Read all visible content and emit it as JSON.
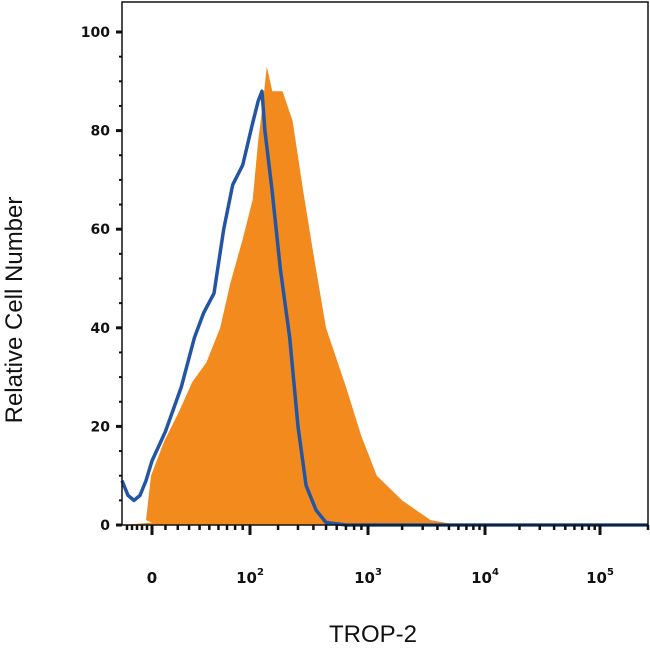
{
  "chart_data": {
    "type": "area",
    "xlabel": "TROP-2",
    "ylabel": "Relative Cell Number",
    "x_scale": "biexponential",
    "ylim": [
      0,
      100
    ],
    "yticks": [
      0,
      20,
      40,
      60,
      80,
      100
    ],
    "ytick_labels": [
      "0",
      "20",
      "40",
      "60",
      "80",
      "100"
    ],
    "xticks": [
      {
        "value": 0,
        "base": "0",
        "exp": ""
      },
      {
        "value": 100,
        "base": "10",
        "exp": "2"
      },
      {
        "value": 1000,
        "base": "10",
        "exp": "3"
      },
      {
        "value": 10000,
        "base": "10",
        "exp": "4"
      },
      {
        "value": 100000,
        "base": "10",
        "exp": "5"
      }
    ],
    "grid": false,
    "legend": "none",
    "colors": {
      "filled": "#F28A1E",
      "outline": "#2255A4",
      "axis": "#111111"
    },
    "series": [
      {
        "style": "filled",
        "color": "#F28A1E",
        "points": [
          [
            -30,
            0
          ],
          [
            0,
            0.5
          ],
          [
            -6,
            1
          ],
          [
            -1,
            10
          ],
          [
            9,
            17
          ],
          [
            21,
            23
          ],
          [
            33,
            29
          ],
          [
            47,
            33
          ],
          [
            62,
            40
          ],
          [
            74,
            49
          ],
          [
            90,
            58
          ],
          [
            108,
            66
          ],
          [
            125,
            78
          ],
          [
            140,
            85
          ],
          [
            155,
            93
          ],
          [
            176,
            88
          ],
          [
            220,
            88
          ],
          [
            270,
            82
          ],
          [
            330,
            68
          ],
          [
            400,
            55
          ],
          [
            500,
            40
          ],
          [
            700,
            28
          ],
          [
            900,
            18
          ],
          [
            1200,
            10
          ],
          [
            2000,
            5
          ],
          [
            3500,
            1
          ],
          [
            6000,
            0
          ],
          [
            200000,
            0
          ]
        ]
      },
      {
        "style": "outline",
        "color": "#2255A4",
        "points": [
          [
            -30,
            9
          ],
          [
            -24,
            6
          ],
          [
            -18,
            5
          ],
          [
            -12,
            6
          ],
          [
            -6,
            9
          ],
          [
            0,
            13
          ],
          [
            10,
            19
          ],
          [
            23,
            28
          ],
          [
            35,
            38
          ],
          [
            44,
            43
          ],
          [
            55,
            47
          ],
          [
            66,
            60
          ],
          [
            77,
            69
          ],
          [
            90,
            73
          ],
          [
            106,
            81
          ],
          [
            125,
            86
          ],
          [
            138,
            88
          ],
          [
            148,
            80
          ],
          [
            175,
            68
          ],
          [
            210,
            52
          ],
          [
            255,
            38
          ],
          [
            300,
            20
          ],
          [
            350,
            8
          ],
          [
            420,
            3
          ],
          [
            500,
            0.5
          ],
          [
            700,
            0
          ],
          [
            200000,
            0
          ]
        ]
      }
    ]
  }
}
